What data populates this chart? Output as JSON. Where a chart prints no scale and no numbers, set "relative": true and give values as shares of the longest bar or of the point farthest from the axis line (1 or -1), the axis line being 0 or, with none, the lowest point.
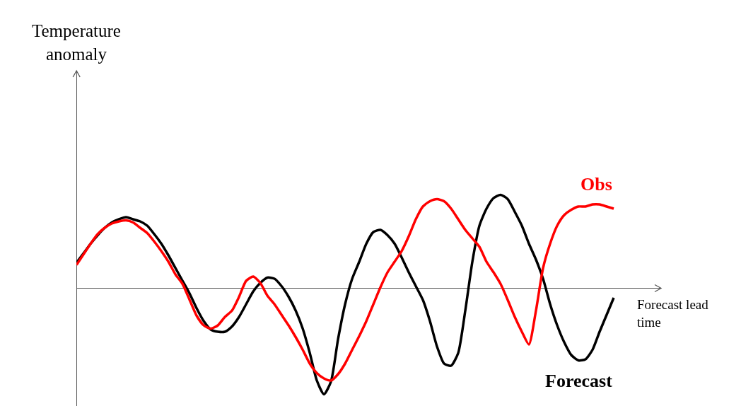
{
  "chart_data": {
    "type": "line",
    "relative": true,
    "annotations": [
      "Temperature anomaly"
    ],
    "xlabel": "Forecast lead time",
    "legend": false,
    "grid": false,
    "marker": "none",
    "line_style": "solid",
    "categories": [
      null,
      null,
      null,
      null,
      null,
      null,
      null,
      null,
      null,
      null,
      null,
      null,
      null,
      null,
      null,
      null,
      null,
      null,
      null,
      null,
      null,
      null,
      null,
      null,
      null,
      null,
      null,
      null,
      null,
      null,
      null,
      null,
      null,
      null,
      null,
      null,
      null,
      null,
      null,
      null,
      null,
      null,
      null,
      null,
      null,
      null,
      null,
      null,
      null,
      null,
      null,
      null,
      null,
      null,
      null,
      null,
      null,
      null,
      null,
      null,
      null,
      null,
      null,
      null,
      null,
      null,
      null,
      null,
      null,
      null,
      null,
      null,
      null,
      null,
      null,
      null,
      null
    ],
    "series": [
      {
        "name": "Forecast",
        "color": "#000000",
        "values": [
          0.24,
          0.33,
          0.42,
          0.5,
          0.57,
          0.62,
          0.65,
          0.67,
          0.65,
          0.63,
          0.59,
          0.51,
          0.42,
          0.31,
          0.19,
          0.07,
          -0.05,
          -0.19,
          -0.31,
          -0.39,
          -0.41,
          -0.41,
          -0.36,
          -0.27,
          -0.15,
          -0.03,
          0.05,
          0.1,
          0.09,
          0.02,
          -0.08,
          -0.21,
          -0.38,
          -0.61,
          -0.87,
          -1,
          -0.88,
          -0.48,
          -0.15,
          0.09,
          0.25,
          0.42,
          0.53,
          0.55,
          0.5,
          0.42,
          0.29,
          0.15,
          0.02,
          -0.11,
          -0.31,
          -0.55,
          -0.71,
          -0.73,
          -0.61,
          -0.21,
          0.25,
          0.59,
          0.75,
          0.85,
          0.88,
          0.84,
          0.72,
          0.59,
          0.42,
          0.27,
          0.09,
          -0.15,
          -0.35,
          -0.51,
          -0.63,
          -0.68,
          -0.67,
          -0.58,
          -0.41,
          -0.25,
          -0.09
        ]
      },
      {
        "name": "Obs",
        "color": "#ff0000",
        "values": [
          0.22,
          0.32,
          0.42,
          0.51,
          0.57,
          0.61,
          0.63,
          0.64,
          0.62,
          0.57,
          0.52,
          0.44,
          0.35,
          0.25,
          0.13,
          0.04,
          -0.11,
          -0.26,
          -0.35,
          -0.38,
          -0.35,
          -0.27,
          -0.21,
          -0.08,
          0.07,
          0.11,
          0.05,
          -0.07,
          -0.15,
          -0.25,
          -0.35,
          -0.46,
          -0.58,
          -0.71,
          -0.8,
          -0.85,
          -0.87,
          -0.81,
          -0.71,
          -0.58,
          -0.45,
          -0.31,
          -0.15,
          0.01,
          0.15,
          0.25,
          0.35,
          0.49,
          0.65,
          0.77,
          0.82,
          0.84,
          0.82,
          0.75,
          0.65,
          0.55,
          0.47,
          0.39,
          0.25,
          0.15,
          0.04,
          -0.11,
          -0.27,
          -0.41,
          -0.53,
          -0.21,
          0.19,
          0.42,
          0.59,
          0.69,
          0.74,
          0.77,
          0.77,
          0.79,
          0.79,
          0.77,
          0.75
        ]
      }
    ]
  }
}
